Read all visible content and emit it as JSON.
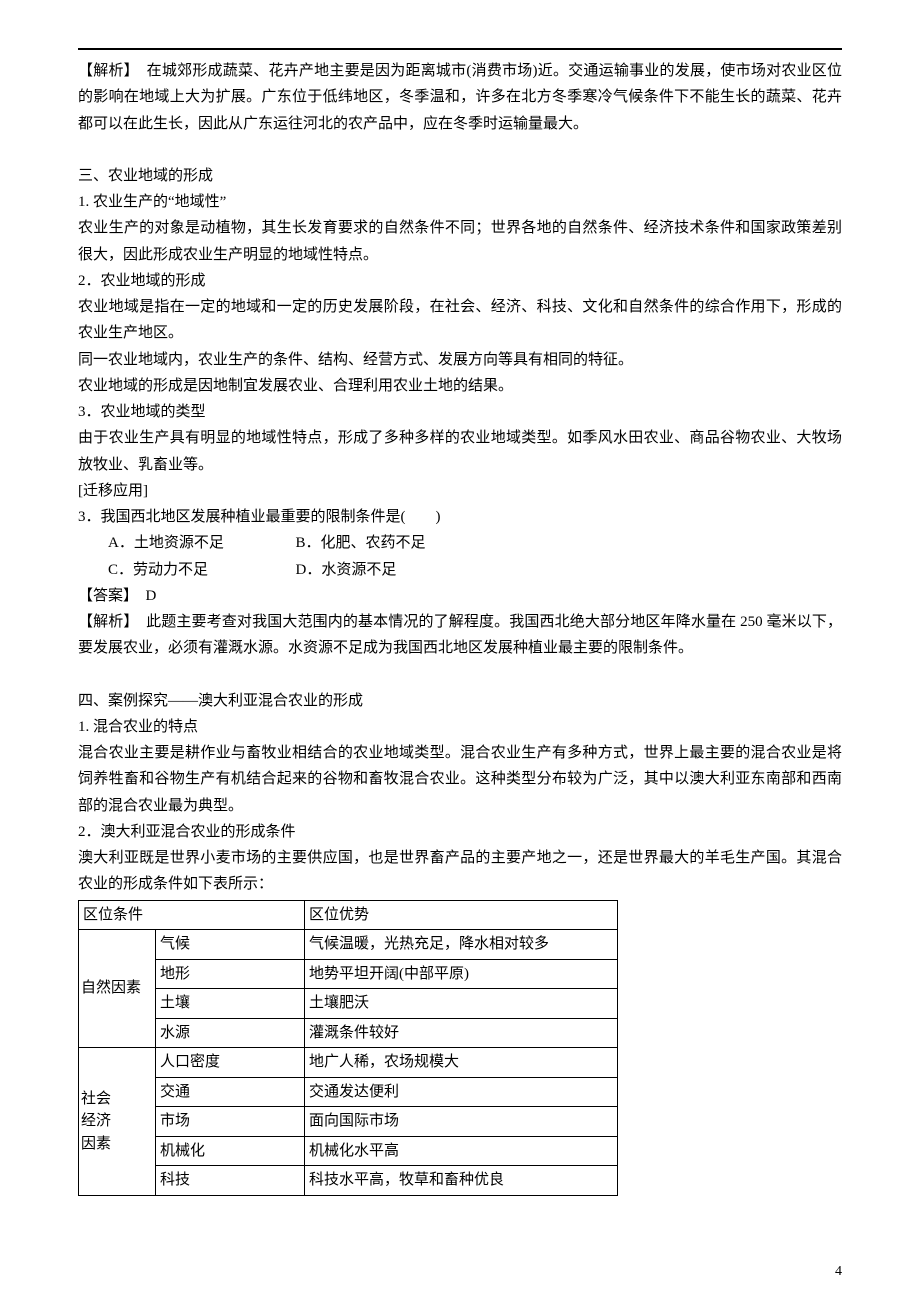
{
  "analysis1_label": "【解析】　",
  "analysis1_text": "在城郊形成蔬菜、花卉产地主要是因为距离城市(消费市场)近。交通运输事业的发展，使市场对农业区位的影响在地域上大为扩展。广东位于低纬地区，冬季温和，许多在北方冬季寒冷气候条件下不能生长的蔬菜、花卉都可以在此生长，因此从广东运往河北的农产品中，应在冬季时运输量最大。",
  "sec3_title": "三、农业地域的形成",
  "sec3_1_h": "1. 农业生产的“地域性”",
  "sec3_1_p": "农业生产的对象是动植物，其生长发育要求的自然条件不同；世界各地的自然条件、经济技术条件和国家政策差别很大，因此形成农业生产明显的地域性特点。",
  "sec3_2_h": "2．农业地域的形成",
  "sec3_2_p1": "农业地域是指在一定的地域和一定的历史发展阶段，在社会、经济、科技、文化和自然条件的综合作用下，形成的农业生产地区。",
  "sec3_2_p2": "同一农业地域内，农业生产的条件、结构、经营方式、发展方向等具有相同的特征。",
  "sec3_2_p3": "农业地域的形成是因地制宜发展农业、合理利用农业土地的结果。",
  "sec3_3_h": "3．农业地域的类型",
  "sec3_3_p": "由于农业生产具有明显的地域性特点，形成了多种多样的农业地域类型。如季风水田农业、商品谷物农业、大牧场放牧业、乳畜业等。",
  "transfer_label": "[迁移应用]",
  "q3_text": "3．我国西北地区发展种植业最重要的限制条件是(　　)",
  "q3_A": "A．土地资源不足",
  "q3_B": "B．化肥、农药不足",
  "q3_C": "C．劳动力不足",
  "q3_D": "D．水资源不足",
  "ans_label": "【答案】　",
  "ans_val": "D",
  "analysis2_label": "【解析】　",
  "analysis2_text": "此题主要考查对我国大范围内的基本情况的了解程度。我国西北绝大部分地区年降水量在 250 毫米以下，要发展农业，必须有灌溉水源。水资源不足成为我国西北地区发展种植业最主要的限制条件。",
  "sec4_title": "四、案例探究——澳大利亚混合农业的形成",
  "sec4_1_h": "1. 混合农业的特点",
  "sec4_1_p": "混合农业主要是耕作业与畜牧业相结合的农业地域类型。混合农业生产有多种方式，世界上最主要的混合农业是将饲养牲畜和谷物生产有机结合起来的谷物和畜牧混合农业。这种类型分布较为广泛，其中以澳大利亚东南部和西南部的混合农业最为典型。",
  "sec4_2_h": "2．澳大利亚混合农业的形成条件",
  "sec4_2_p": "澳大利亚既是世界小麦市场的主要供应国，也是世界畜产品的主要产地之一，还是世界最大的羊毛生产国。其混合农业的形成条件如下表所示：",
  "table": {
    "header": {
      "c1": "区位条件",
      "c2": "区位优势"
    },
    "group1_label": "自然因素",
    "group2_label": "社会\n经济\n因素",
    "rows": [
      {
        "factor": "气候",
        "adv": "气候温暖，光热充足，降水相对较多"
      },
      {
        "factor": "地形",
        "adv": "地势平坦开阔(中部平原)"
      },
      {
        "factor": "土壤",
        "adv": "土壤肥沃"
      },
      {
        "factor": "水源",
        "adv": "灌溉条件较好"
      },
      {
        "factor": "人口密度",
        "adv": "地广人稀，农场规模大"
      },
      {
        "factor": "交通",
        "adv": "交通发达便利"
      },
      {
        "factor": "市场",
        "adv": "面向国际市场"
      },
      {
        "factor": "机械化",
        "adv": "机械化水平高"
      },
      {
        "factor": "科技",
        "adv": "科技水平高，牧草和畜种优良"
      }
    ]
  },
  "page_number": "4"
}
